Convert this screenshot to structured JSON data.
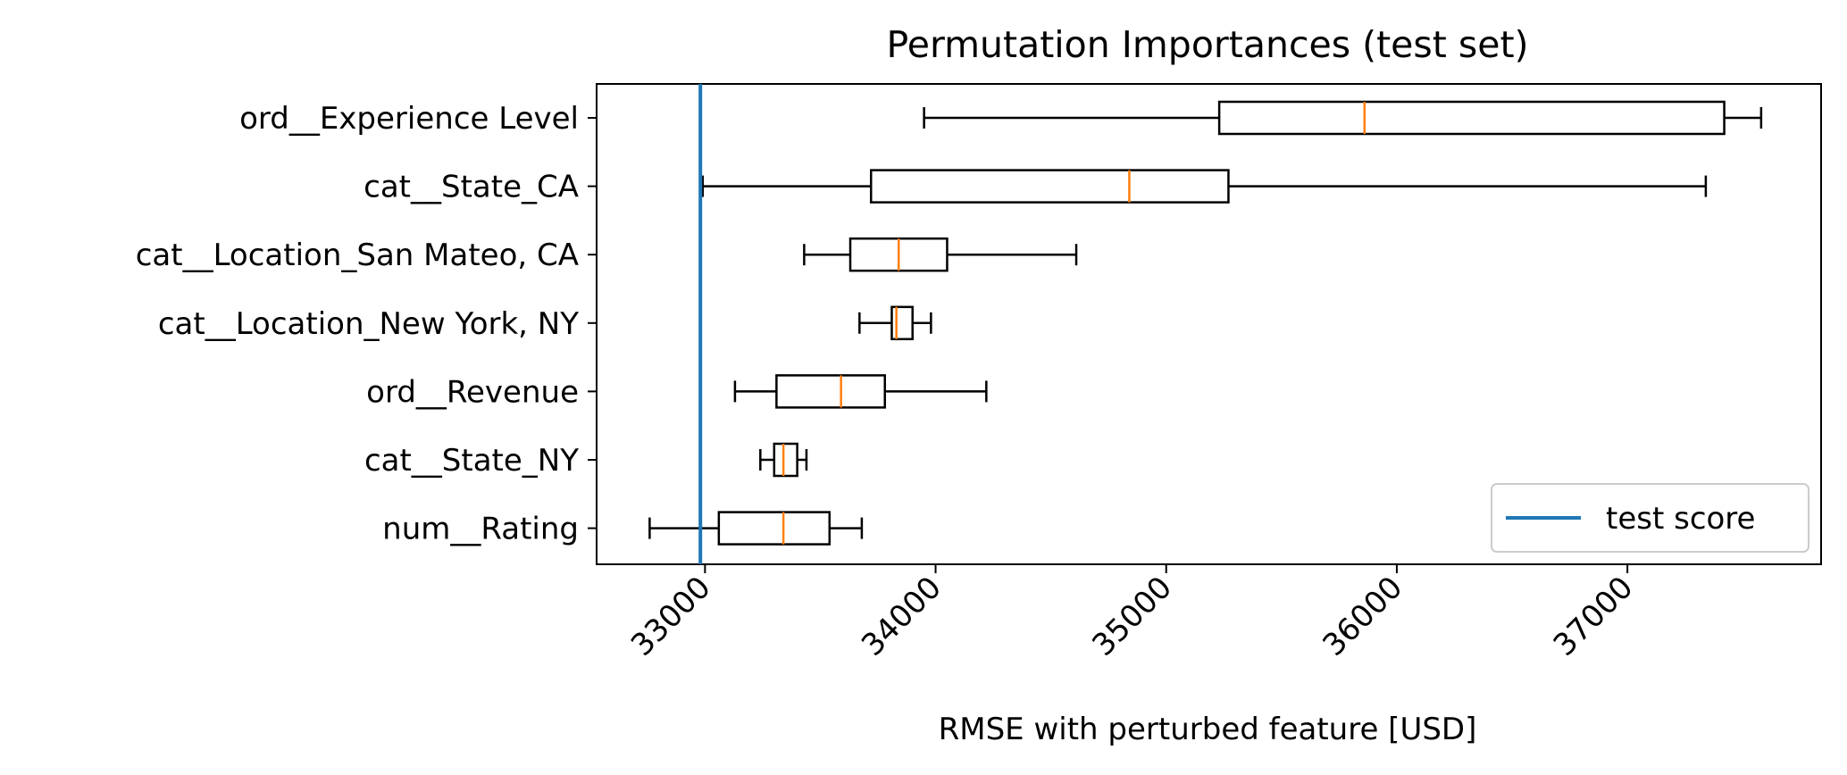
{
  "chart_data": {
    "type": "boxplot",
    "orientation": "horizontal",
    "title": "Permutation Importances (test set)",
    "xlabel": "RMSE with perturbed feature [USD]",
    "ylabel": "",
    "xlim": [
      32530,
      37840
    ],
    "xticks": [
      33000,
      34000,
      35000,
      36000,
      37000
    ],
    "xtick_labels": [
      "33000",
      "34000",
      "35000",
      "36000",
      "37000"
    ],
    "xtick_rotation": 45,
    "grid": false,
    "categories": [
      "ord__Experience Level",
      "cat__State_CA",
      "cat__Location_San Mateo, CA",
      "cat__Location_New York, NY",
      "ord__Revenue",
      "cat__State_NY",
      "num__Rating"
    ],
    "boxes": [
      {
        "whisker_low": 33950,
        "q1": 35230,
        "median": 35860,
        "q3": 37420,
        "whisker_high": 37580
      },
      {
        "whisker_low": 32990,
        "q1": 33720,
        "median": 34840,
        "q3": 35270,
        "whisker_high": 37340
      },
      {
        "whisker_low": 33430,
        "q1": 33630,
        "median": 33840,
        "q3": 34050,
        "whisker_high": 34610
      },
      {
        "whisker_low": 33670,
        "q1": 33810,
        "median": 33830,
        "q3": 33900,
        "whisker_high": 33980
      },
      {
        "whisker_low": 33130,
        "q1": 33310,
        "median": 33590,
        "q3": 33780,
        "whisker_high": 34220
      },
      {
        "whisker_low": 33240,
        "q1": 33300,
        "median": 33340,
        "q3": 33400,
        "whisker_high": 33440
      },
      {
        "whisker_low": 32760,
        "q1": 33060,
        "median": 33340,
        "q3": 33540,
        "whisker_high": 33680
      }
    ],
    "reference_line": {
      "value": 32980,
      "label": "test score",
      "color": "#1f77b4"
    },
    "median_color": "#ff7f0e",
    "box_color": "#000000",
    "legend": {
      "position": "lower-right",
      "entries": [
        "test score"
      ]
    }
  }
}
